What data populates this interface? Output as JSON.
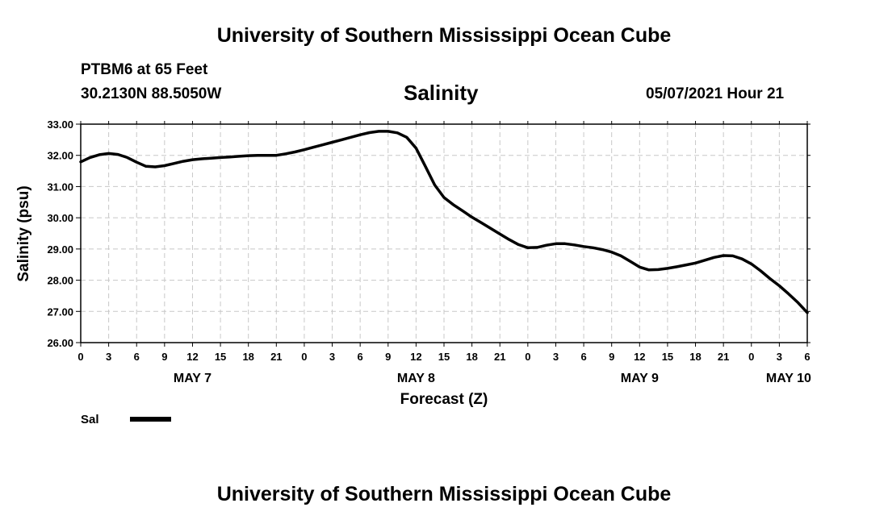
{
  "header": {
    "title": "University of Southern Mississippi Ocean Cube",
    "station": "PTBM6 at 65 Feet",
    "coords": "30.2130N  88.5050W",
    "variable": "Salinity",
    "datetime": "05/07/2021 Hour 21"
  },
  "footer": {
    "title": "University of Southern Mississippi Ocean Cube"
  },
  "chart_data": {
    "type": "line",
    "title": "Salinity",
    "xlabel": "Forecast (Z)",
    "ylabel": "Salinity (psu)",
    "ylim": [
      26.0,
      33.0
    ],
    "xlim": [
      0,
      78
    ],
    "yticks": [
      "26.00",
      "27.00",
      "28.00",
      "29.00",
      "30.00",
      "31.00",
      "32.00",
      "33.00"
    ],
    "xticks": [
      "0",
      "3",
      "6",
      "9",
      "12",
      "15",
      "18",
      "21",
      "0",
      "3",
      "6",
      "9",
      "12",
      "15",
      "18",
      "21",
      "0",
      "3",
      "6",
      "9",
      "12",
      "15",
      "18",
      "21",
      "0",
      "3",
      "6"
    ],
    "days": [
      {
        "label": "MAY 7",
        "hour": 12
      },
      {
        "label": "MAY 8",
        "hour": 36
      },
      {
        "label": "MAY 9",
        "hour": 60
      },
      {
        "label": "MAY 10",
        "hour": 76
      }
    ],
    "grid": true,
    "legend": "bottom-left",
    "series": [
      {
        "name": "Sal",
        "color": "#000000",
        "x": [
          0,
          1,
          2,
          3,
          4,
          5,
          6,
          7,
          8,
          9,
          10,
          11,
          12,
          13,
          14,
          15,
          16,
          17,
          18,
          19,
          20,
          21,
          22,
          23,
          24,
          25,
          26,
          27,
          28,
          29,
          30,
          31,
          32,
          33,
          34,
          35,
          36,
          37,
          38,
          39,
          40,
          41,
          42,
          43,
          44,
          45,
          46,
          47,
          48,
          49,
          50,
          51,
          52,
          53,
          54,
          55,
          56,
          57,
          58,
          59,
          60,
          61,
          62,
          63,
          64,
          65,
          66,
          67,
          68,
          69,
          70,
          71,
          72,
          73,
          74,
          75,
          76,
          77,
          78
        ],
        "values": [
          31.79,
          31.93,
          32.02,
          32.06,
          32.03,
          31.93,
          31.78,
          31.65,
          31.63,
          31.67,
          31.74,
          31.81,
          31.86,
          31.89,
          31.91,
          31.93,
          31.95,
          31.97,
          31.99,
          32.0,
          32.0,
          32.0,
          32.05,
          32.11,
          32.18,
          32.26,
          32.34,
          32.42,
          32.5,
          32.58,
          32.66,
          32.73,
          32.77,
          32.77,
          32.72,
          32.58,
          32.23,
          31.65,
          31.05,
          30.65,
          30.42,
          30.22,
          30.02,
          29.84,
          29.66,
          29.48,
          29.3,
          29.14,
          29.04,
          29.05,
          29.12,
          29.17,
          29.17,
          29.13,
          29.08,
          29.04,
          28.98,
          28.9,
          28.78,
          28.6,
          28.42,
          28.33,
          28.34,
          28.38,
          28.43,
          28.49,
          28.55,
          28.64,
          28.73,
          28.79,
          28.78,
          28.68,
          28.52,
          28.3,
          28.05,
          27.82,
          27.56,
          27.28,
          26.96
        ]
      }
    ]
  }
}
